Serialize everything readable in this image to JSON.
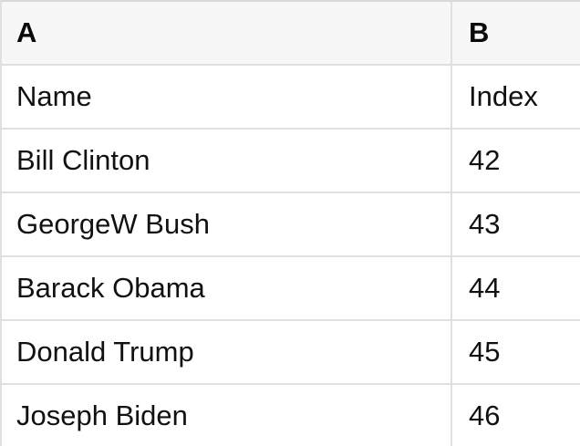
{
  "colors": {
    "header_bg": "#f7f7f7",
    "row_bg": "#ffffff",
    "border": "#e0e0e0",
    "border_outer": "#d9d9d9",
    "text": "#111111",
    "header_text": "#0a0a0a"
  },
  "sheet": {
    "column_headers": [
      "A",
      "B"
    ],
    "rows": [
      [
        "Name",
        "Index"
      ],
      [
        "Bill Clinton",
        "42"
      ],
      [
        "GeorgeW Bush",
        "43"
      ],
      [
        "Barack Obama",
        "44"
      ],
      [
        "Donald Trump",
        "45"
      ],
      [
        "Joseph Biden",
        "46"
      ]
    ]
  }
}
